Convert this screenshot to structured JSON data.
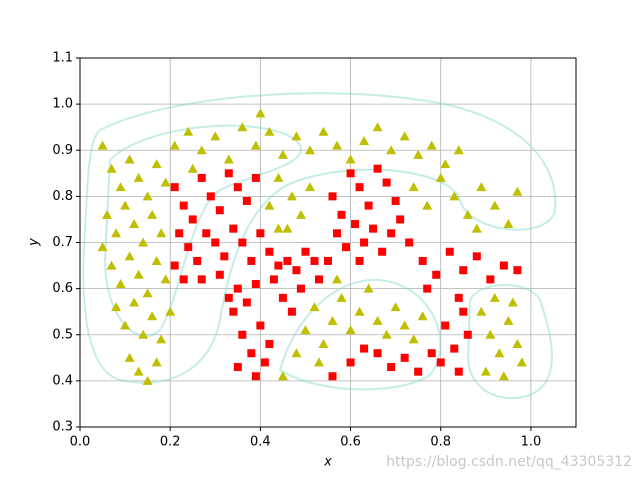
{
  "chart_data": {
    "type": "scatter",
    "xlabel": "x",
    "ylabel": "y",
    "xlim": [
      0,
      1.1
    ],
    "ylim": [
      0.3,
      1.1
    ],
    "xticks": [
      {
        "value": 0,
        "label": "0.0"
      },
      0.2,
      0.4,
      0.6,
      0.8,
      {
        "value": 1,
        "label": "1.0"
      }
    ],
    "yticks": [
      0.3,
      0.4,
      0.5,
      0.6,
      0.7,
      0.8,
      0.9,
      {
        "value": 1,
        "label": "1.0"
      },
      1.1
    ],
    "grid": true,
    "watermark": "https://blog.csdn.net/qq_43305312",
    "series": [
      {
        "color": "#ff0000",
        "marker": "square",
        "x": [
          0.21,
          0.23,
          0.25,
          0.27,
          0.29,
          0.31,
          0.33,
          0.35,
          0.37,
          0.39,
          0.22,
          0.24,
          0.26,
          0.28,
          0.3,
          0.32,
          0.34,
          0.36,
          0.38,
          0.4,
          0.42,
          0.44,
          0.21,
          0.23,
          0.27,
          0.31,
          0.35,
          0.39,
          0.43,
          0.46,
          0.48,
          0.5,
          0.52,
          0.34,
          0.36,
          0.38,
          0.35,
          0.4,
          0.41,
          0.37,
          0.39,
          0.42,
          0.33,
          0.56,
          0.58,
          0.6,
          0.62,
          0.64,
          0.66,
          0.68,
          0.7,
          0.57,
          0.59,
          0.61,
          0.63,
          0.65,
          0.67,
          0.69,
          0.71,
          0.73,
          0.55,
          0.62,
          0.76,
          0.79,
          0.82,
          0.85,
          0.88,
          0.91,
          0.94,
          0.97,
          0.77,
          0.84,
          0.81,
          0.83,
          0.85,
          0.86,
          0.8,
          0.84,
          0.56,
          0.6,
          0.63,
          0.66,
          0.69,
          0.72,
          0.75,
          0.78,
          0.45,
          0.47,
          0.53,
          0.49
        ],
        "values": [
          0.82,
          0.78,
          0.75,
          0.84,
          0.8,
          0.77,
          0.85,
          0.82,
          0.79,
          0.84,
          0.72,
          0.69,
          0.66,
          0.72,
          0.7,
          0.67,
          0.73,
          0.7,
          0.66,
          0.72,
          0.68,
          0.65,
          0.65,
          0.62,
          0.62,
          0.63,
          0.6,
          0.61,
          0.62,
          0.66,
          0.64,
          0.68,
          0.66,
          0.55,
          0.5,
          0.46,
          0.43,
          0.52,
          0.44,
          0.57,
          0.41,
          0.48,
          0.58,
          0.8,
          0.76,
          0.85,
          0.82,
          0.78,
          0.86,
          0.83,
          0.79,
          0.72,
          0.69,
          0.74,
          0.7,
          0.73,
          0.68,
          0.72,
          0.75,
          0.7,
          0.66,
          0.66,
          0.66,
          0.63,
          0.68,
          0.64,
          0.67,
          0.62,
          0.65,
          0.64,
          0.6,
          0.58,
          0.52,
          0.47,
          0.55,
          0.5,
          0.44,
          0.42,
          0.41,
          0.44,
          0.47,
          0.46,
          0.43,
          0.45,
          0.42,
          0.46,
          0.58,
          0.55,
          0.62,
          0.6
        ]
      },
      {
        "color": "#bfbf00",
        "marker": "triangle",
        "x": [
          0.05,
          0.07,
          0.09,
          0.11,
          0.13,
          0.15,
          0.17,
          0.19,
          0.06,
          0.08,
          0.1,
          0.12,
          0.14,
          0.16,
          0.18,
          0.05,
          0.07,
          0.09,
          0.11,
          0.13,
          0.15,
          0.17,
          0.19,
          0.08,
          0.1,
          0.12,
          0.14,
          0.16,
          0.18,
          0.11,
          0.13,
          0.15,
          0.17,
          0.2,
          0.21,
          0.24,
          0.27,
          0.3,
          0.33,
          0.36,
          0.39,
          0.42,
          0.45,
          0.48,
          0.51,
          0.54,
          0.57,
          0.6,
          0.63,
          0.66,
          0.69,
          0.72,
          0.75,
          0.78,
          0.81,
          0.84,
          0.4,
          0.25,
          0.44,
          0.47,
          0.49,
          0.46,
          0.51,
          0.42,
          0.44,
          0.74,
          0.77,
          0.8,
          0.83,
          0.86,
          0.89,
          0.92,
          0.95,
          0.97,
          0.88,
          0.89,
          0.91,
          0.93,
          0.95,
          0.97,
          0.9,
          0.94,
          0.98,
          0.96,
          0.92,
          0.45,
          0.48,
          0.5,
          0.52,
          0.54,
          0.56,
          0.58,
          0.6,
          0.62,
          0.64,
          0.66,
          0.68,
          0.7,
          0.72,
          0.74,
          0.76,
          0.53,
          0.57
        ],
        "values": [
          0.91,
          0.86,
          0.82,
          0.88,
          0.84,
          0.8,
          0.87,
          0.83,
          0.76,
          0.72,
          0.78,
          0.74,
          0.7,
          0.76,
          0.72,
          0.69,
          0.65,
          0.61,
          0.67,
          0.63,
          0.59,
          0.66,
          0.62,
          0.56,
          0.52,
          0.57,
          0.5,
          0.54,
          0.49,
          0.45,
          0.42,
          0.4,
          0.44,
          0.55,
          0.91,
          0.94,
          0.9,
          0.93,
          0.88,
          0.95,
          0.91,
          0.94,
          0.89,
          0.93,
          0.9,
          0.94,
          0.91,
          0.88,
          0.92,
          0.95,
          0.9,
          0.93,
          0.89,
          0.91,
          0.87,
          0.9,
          0.98,
          0.86,
          0.84,
          0.8,
          0.76,
          0.73,
          0.82,
          0.78,
          0.73,
          0.82,
          0.78,
          0.84,
          0.8,
          0.76,
          0.82,
          0.78,
          0.74,
          0.81,
          0.73,
          0.55,
          0.5,
          0.46,
          0.53,
          0.48,
          0.42,
          0.41,
          0.44,
          0.57,
          0.58,
          0.41,
          0.46,
          0.51,
          0.56,
          0.48,
          0.53,
          0.58,
          0.51,
          0.55,
          0.6,
          0.53,
          0.5,
          0.56,
          0.52,
          0.49,
          0.54,
          0.44,
          0.62
        ]
      }
    ]
  }
}
